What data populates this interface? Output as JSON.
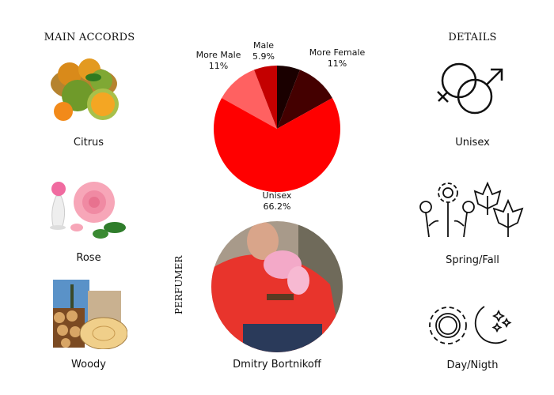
{
  "accords": {
    "title": "MAIN ACCORDS",
    "items": [
      {
        "label": "Citrus",
        "icon": "citrus-image"
      },
      {
        "label": "Rose",
        "icon": "rose-image"
      },
      {
        "label": "Woody",
        "icon": "woody-image"
      }
    ]
  },
  "details": {
    "title": "DETAILS",
    "items": [
      {
        "label": "Unisex",
        "icon": "gender-icon"
      },
      {
        "label": "Spring/Fall",
        "icon": "season-icon"
      },
      {
        "label": "Day/Nigth",
        "icon": "day-night-icon"
      }
    ]
  },
  "perfumer": {
    "title": "PERFUMER",
    "name": "Dmitry Bortnikoff"
  },
  "chart_data": {
    "type": "pie",
    "start": "top",
    "direction": "clockwise",
    "slices": [
      {
        "label": "",
        "value": 5.9,
        "display": "",
        "color": "#1a0000"
      },
      {
        "label": "More Female",
        "value": 11,
        "display": "11%",
        "color": "#440000"
      },
      {
        "label": "Unisex",
        "value": 66.2,
        "display": "66.2%",
        "color": "#ff0000"
      },
      {
        "label": "More Male",
        "value": 11,
        "display": "11%",
        "color": "#ff6161"
      },
      {
        "label": "Male",
        "value": 5.9,
        "display": "5.9%",
        "color": "#c40000"
      }
    ]
  }
}
